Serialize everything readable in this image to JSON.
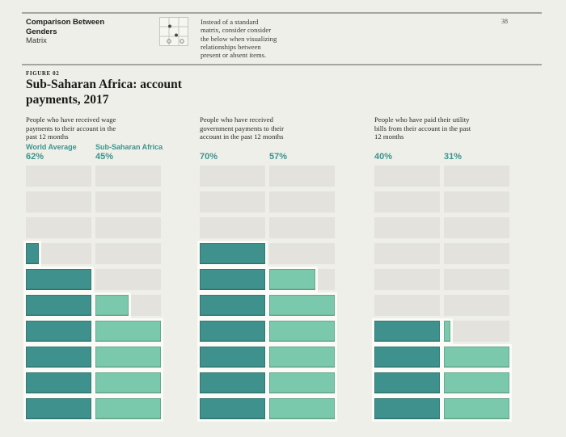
{
  "page": {
    "number": "38"
  },
  "header": {
    "title": "Comparison Between\nGenders",
    "subtitle": "Matrix",
    "intro": "Instead of a standard\nmatrix, consider consider\nthe below when visualizing\nrelationships between\npresent or absent items.",
    "icon": "matrix-dot-grid-icon"
  },
  "figure": {
    "label": "FIGURE 02",
    "title": "Sub-Saharan Africa: account\npayments, 2017"
  },
  "chart_data": {
    "type": "bar",
    "subtype": "waffle-row-matrix",
    "title": "Sub-Saharan Africa: account payments, 2017",
    "figure_label": "FIGURE 02",
    "rows": 10,
    "percent_per_row": 10,
    "fill_direction": "bottom-up",
    "series_names": [
      "World Average",
      "Sub-Saharan Africa"
    ],
    "groups": [
      {
        "question": "People who have received wage\npayments to their account in the\npast 12 months",
        "show_series_labels": true,
        "values": [
          62,
          45
        ]
      },
      {
        "question": "People who have received\ngovernment payments to their\naccount in the past 12 months",
        "show_series_labels": false,
        "values": [
          70,
          57
        ]
      },
      {
        "question": "People who have paid their utility\nbills from their account in the past\n12 months",
        "show_series_labels": false,
        "values": [
          40,
          31
        ]
      }
    ],
    "colors": {
      "filled": [
        "#3e918c",
        "#7bc9ad"
      ],
      "empty": "#e3e2dd",
      "label_text": "#3b948e",
      "page_background": "#eeefe8",
      "cell_outline": "#fbfbf7"
    },
    "legend_position": "top-of-first-group"
  }
}
